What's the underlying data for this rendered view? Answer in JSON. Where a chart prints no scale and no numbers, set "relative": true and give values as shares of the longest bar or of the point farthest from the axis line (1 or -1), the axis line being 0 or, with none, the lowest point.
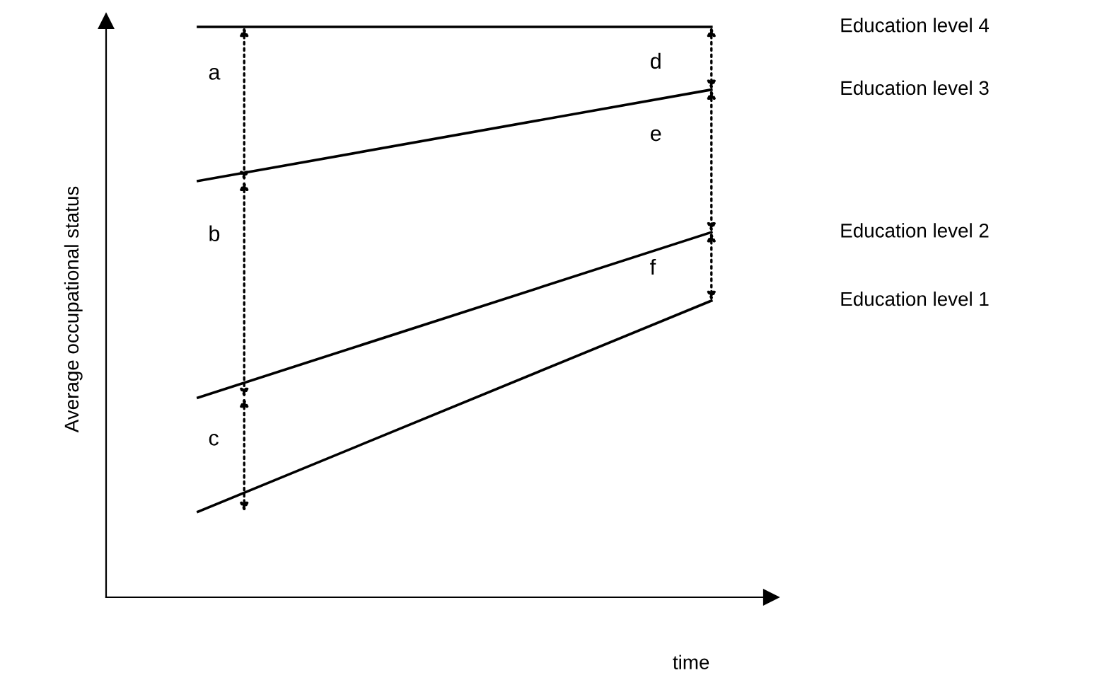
{
  "chart_data": {
    "type": "line",
    "relative": true,
    "xlabel": "time",
    "ylabel": "Average occupational status",
    "categories": [
      null,
      null
    ],
    "series": [
      {
        "name": "Education level 4",
        "color": "#000000",
        "values": [
          1,
          1
        ]
      },
      {
        "name": "Education level 3",
        "color": "#000000",
        "values": [
          0.73,
          0.89
        ]
      },
      {
        "name": "Education level 2",
        "color": "#000000",
        "values": [
          0.35,
          0.64
        ]
      },
      {
        "name": "Education level 1",
        "color": "#000000",
        "values": [
          0.15,
          0.52
        ]
      }
    ],
    "annotations": [
      "a",
      "b",
      "c",
      "d",
      "e",
      "f"
    ],
    "marker": "none",
    "line_style": "solid",
    "legend": false
  }
}
